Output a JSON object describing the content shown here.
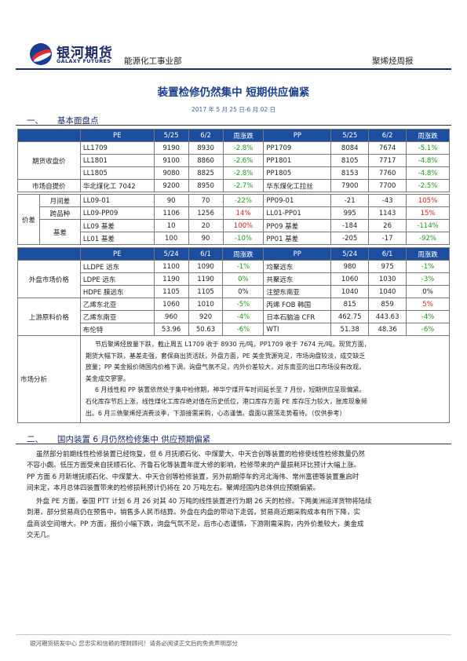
{
  "header": {
    "logo_cn": "银河期货",
    "logo_en": "GALAXY FUTURES",
    "department": "能源化工事业部",
    "report_type": "聚烯烃周报"
  },
  "title": "装置检修仍然集中 短期供应偏紧",
  "date_range": "2017 年 5 月 25 日-6 月 02 日",
  "section1": {
    "num": "一、",
    "title": "基本面盘点"
  },
  "table1": {
    "header": [
      "",
      "PE",
      "5/25",
      "6/2",
      "周涨跌",
      "PP",
      "5/25",
      "6/2",
      "周涨跌"
    ],
    "futures_label": "期货收盘价",
    "futures": [
      [
        "LL1709",
        "9190",
        "8930",
        "-2.8%",
        "PP1709",
        "8084",
        "7674",
        "-5.1%"
      ],
      [
        "LL1801",
        "9100",
        "8860",
        "-2.6%",
        "PP1801",
        "8105",
        "7717",
        "-4.8%"
      ],
      [
        "LL1805",
        "9080",
        "8825",
        "-2.8%",
        "PP1805",
        "8153",
        "7760",
        "-4.8%"
      ]
    ],
    "spot_label": "市场自提价",
    "spot": [
      "华北煤化工 7042",
      "9200",
      "8950",
      "-2.7%",
      "华东煤化工拉丝",
      "7900",
      "7700",
      "-2.5%"
    ],
    "spread_label": "价差",
    "spread_sub": [
      "月间差",
      "跨品种",
      "基差"
    ],
    "spread": [
      [
        "LL09-01",
        "90",
        "70",
        "-22%",
        "PP09-01",
        "-21",
        "-43",
        "105%"
      ],
      [
        "LL09-PP09",
        "1106",
        "1256",
        "14%",
        "LL01-PP01",
        "995",
        "1143",
        "15%"
      ],
      [
        "LL09 基差",
        "10",
        "20",
        "100%",
        "PP09 基差",
        "-184",
        "26",
        "-114%"
      ],
      [
        "LL01 基差",
        "100",
        "90",
        "-10%",
        "PP01 基差",
        "-205",
        "-17",
        "-92%"
      ]
    ]
  },
  "table2": {
    "header": [
      "",
      "PE",
      "5/24",
      "6/1",
      "周涨跌",
      "PP",
      "5/24",
      "6/1",
      "周涨跌"
    ],
    "ext_label": "外盘市场价格",
    "ext": [
      [
        "LLDPE 远东",
        "1100",
        "1090",
        "-1%",
        "均聚远东",
        "980",
        "975",
        "-1%"
      ],
      [
        "LDPE 远东",
        "1190",
        "1190",
        "0%",
        "共聚远东",
        "1060",
        "1030",
        "-3%"
      ],
      [
        "HDPE 膜远东",
        "1105",
        "1105",
        "0%",
        "注塑东南亚",
        "1040",
        "1040",
        "0%"
      ]
    ],
    "upstream_label": "上游原料价格",
    "upstream": [
      [
        "乙烯东北亚",
        "1060",
        "1010",
        "-5%",
        "丙烯 FOB 韩国",
        "815",
        "859",
        "5%"
      ],
      [
        "乙烯东南亚",
        "960",
        "920",
        "-4%",
        "日本石脑油 CFR",
        "462.75",
        "443.63",
        "-4%"
      ],
      [
        "布伦特",
        "53.96",
        "50.63",
        "-6%",
        "WTI",
        "51.38",
        "48.36",
        "-6%"
      ]
    ],
    "analysis_label": "市场分析",
    "analysis_lines": [
      "节后聚烯烃放量下跌，截止周五 L1709 收于 8930 元/吨，PP1709 收于 7674 元/吨。现货方面，",
      "期货大幅下跌，基差走强，套保商出货活跃，外盘方面，PE 美金货源充足，市场询盘较淡，成交缺乏",
      "放量；PP 美金报价随国内价格下调，询盘气氛不足，内外价差较大，对东南亚的出口市场没有改观，",
      "美金成交寥寥。",
      "6 月线性和 PP 装置依然处于集中检修期，神华宁煤开车时间延长至 7 月份，短期供应呈现偏紧。",
      "石化库存节后上涨，线性煤化工库存绝对值在历史低位，港口库存方面 PE 库存压力较大，胀库现象频",
      "出。6 月三债聚烯烃消费淡季，下游接需采购，心态谨慎。盘面以震荡走势看待。（仅供参考）"
    ]
  },
  "section2": {
    "num": "二、",
    "title": "国内装置 6 月仍然检修集中 供应预期偏紧"
  },
  "section2_paragraph1": [
    "虽然部分前期线性检修装置已经恢复，但 6 月抚顺石化、中煤蒙大、中天合创等装置的检修使线性检修数量仍然",
    "不容小觑。低压方面受来自抚顺石化、齐鲁石化等装置年度大修的影响，检修带来的产量损耗环比预计大幅上涨。",
    "PP 方面 6 月新增抚顺石化、中煤蒙大、中天合创等检修装置，另外前期停车的河北海伟、常州富德等装置重启时",
    "间未定，本月总体四装置带来的检修损耗预计仍将在 20 万吨左右。聚烯烃国内总体供应预期偏紧。"
  ],
  "section2_paragraph2": [
    "外盘 PE 方面，泰国 PTT 计划 6 月 26 对其 40 万吨的线性装置进行为期 26 天的检修。下两美洲运洋货物将陆续",
    "到港，部分贸易商仍在预售中，销售多人民币结算。外盘在内盘的带动下走弱，贸易商近期采购成本有所下降，实",
    "盘商谈空间增大。PP 方面，报价小幅下跌，询盘气氛不足，后市心态谨慎，下游刚需采购，内外价差较大，美金成",
    "交无几。"
  ],
  "footer": "银河期货研发中心 您忠实和信赖的理财顾问！请务必阅读正文后的免责声明部分",
  "colors": {
    "brand": "#1b2a6b",
    "table_header": "#1c4d9e",
    "up": "#e01b1b",
    "down": "#1a9a1a"
  }
}
